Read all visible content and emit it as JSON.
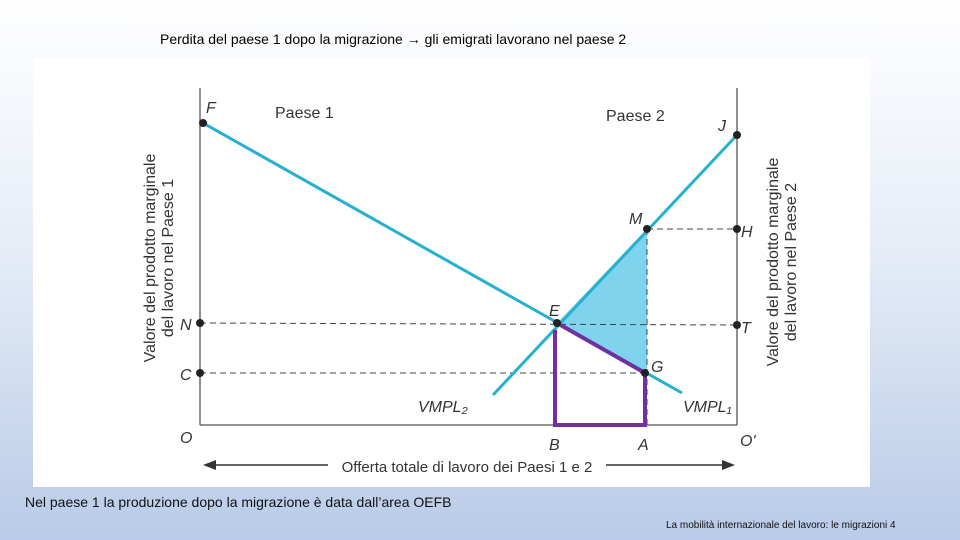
{
  "header": {
    "title": "Perdita del paese 1 dopo la migrazione → gli emigrati lavorano nel paese 2"
  },
  "diagram": {
    "country_labels": [
      "Paese 1",
      "Paese 2"
    ],
    "y_axis_left": [
      "Valore del prodotto marginale",
      "del lavoro nel Paese 1"
    ],
    "y_axis_right": [
      "Valore del prodotto marginale",
      "del lavoro nel Paese 2"
    ],
    "x_axis": "Offerta totale di lavoro dei Paesi 1 e 2",
    "curves": [
      "VMPL₂",
      "VMPL₁"
    ],
    "points": {
      "F": "F",
      "J": "J",
      "M": "M",
      "H": "H",
      "E": "E",
      "N": "N",
      "T": "T",
      "C": "C",
      "G": "G",
      "O": "O",
      "B": "B",
      "A": "A",
      "O2": "O'"
    }
  },
  "caption": "Nel paese 1 la produzione dopo la migrazione è data dall’area OEFB",
  "footer": {
    "text": "La mobilità internazionale del lavoro: le migrazioni",
    "page": "4"
  }
}
